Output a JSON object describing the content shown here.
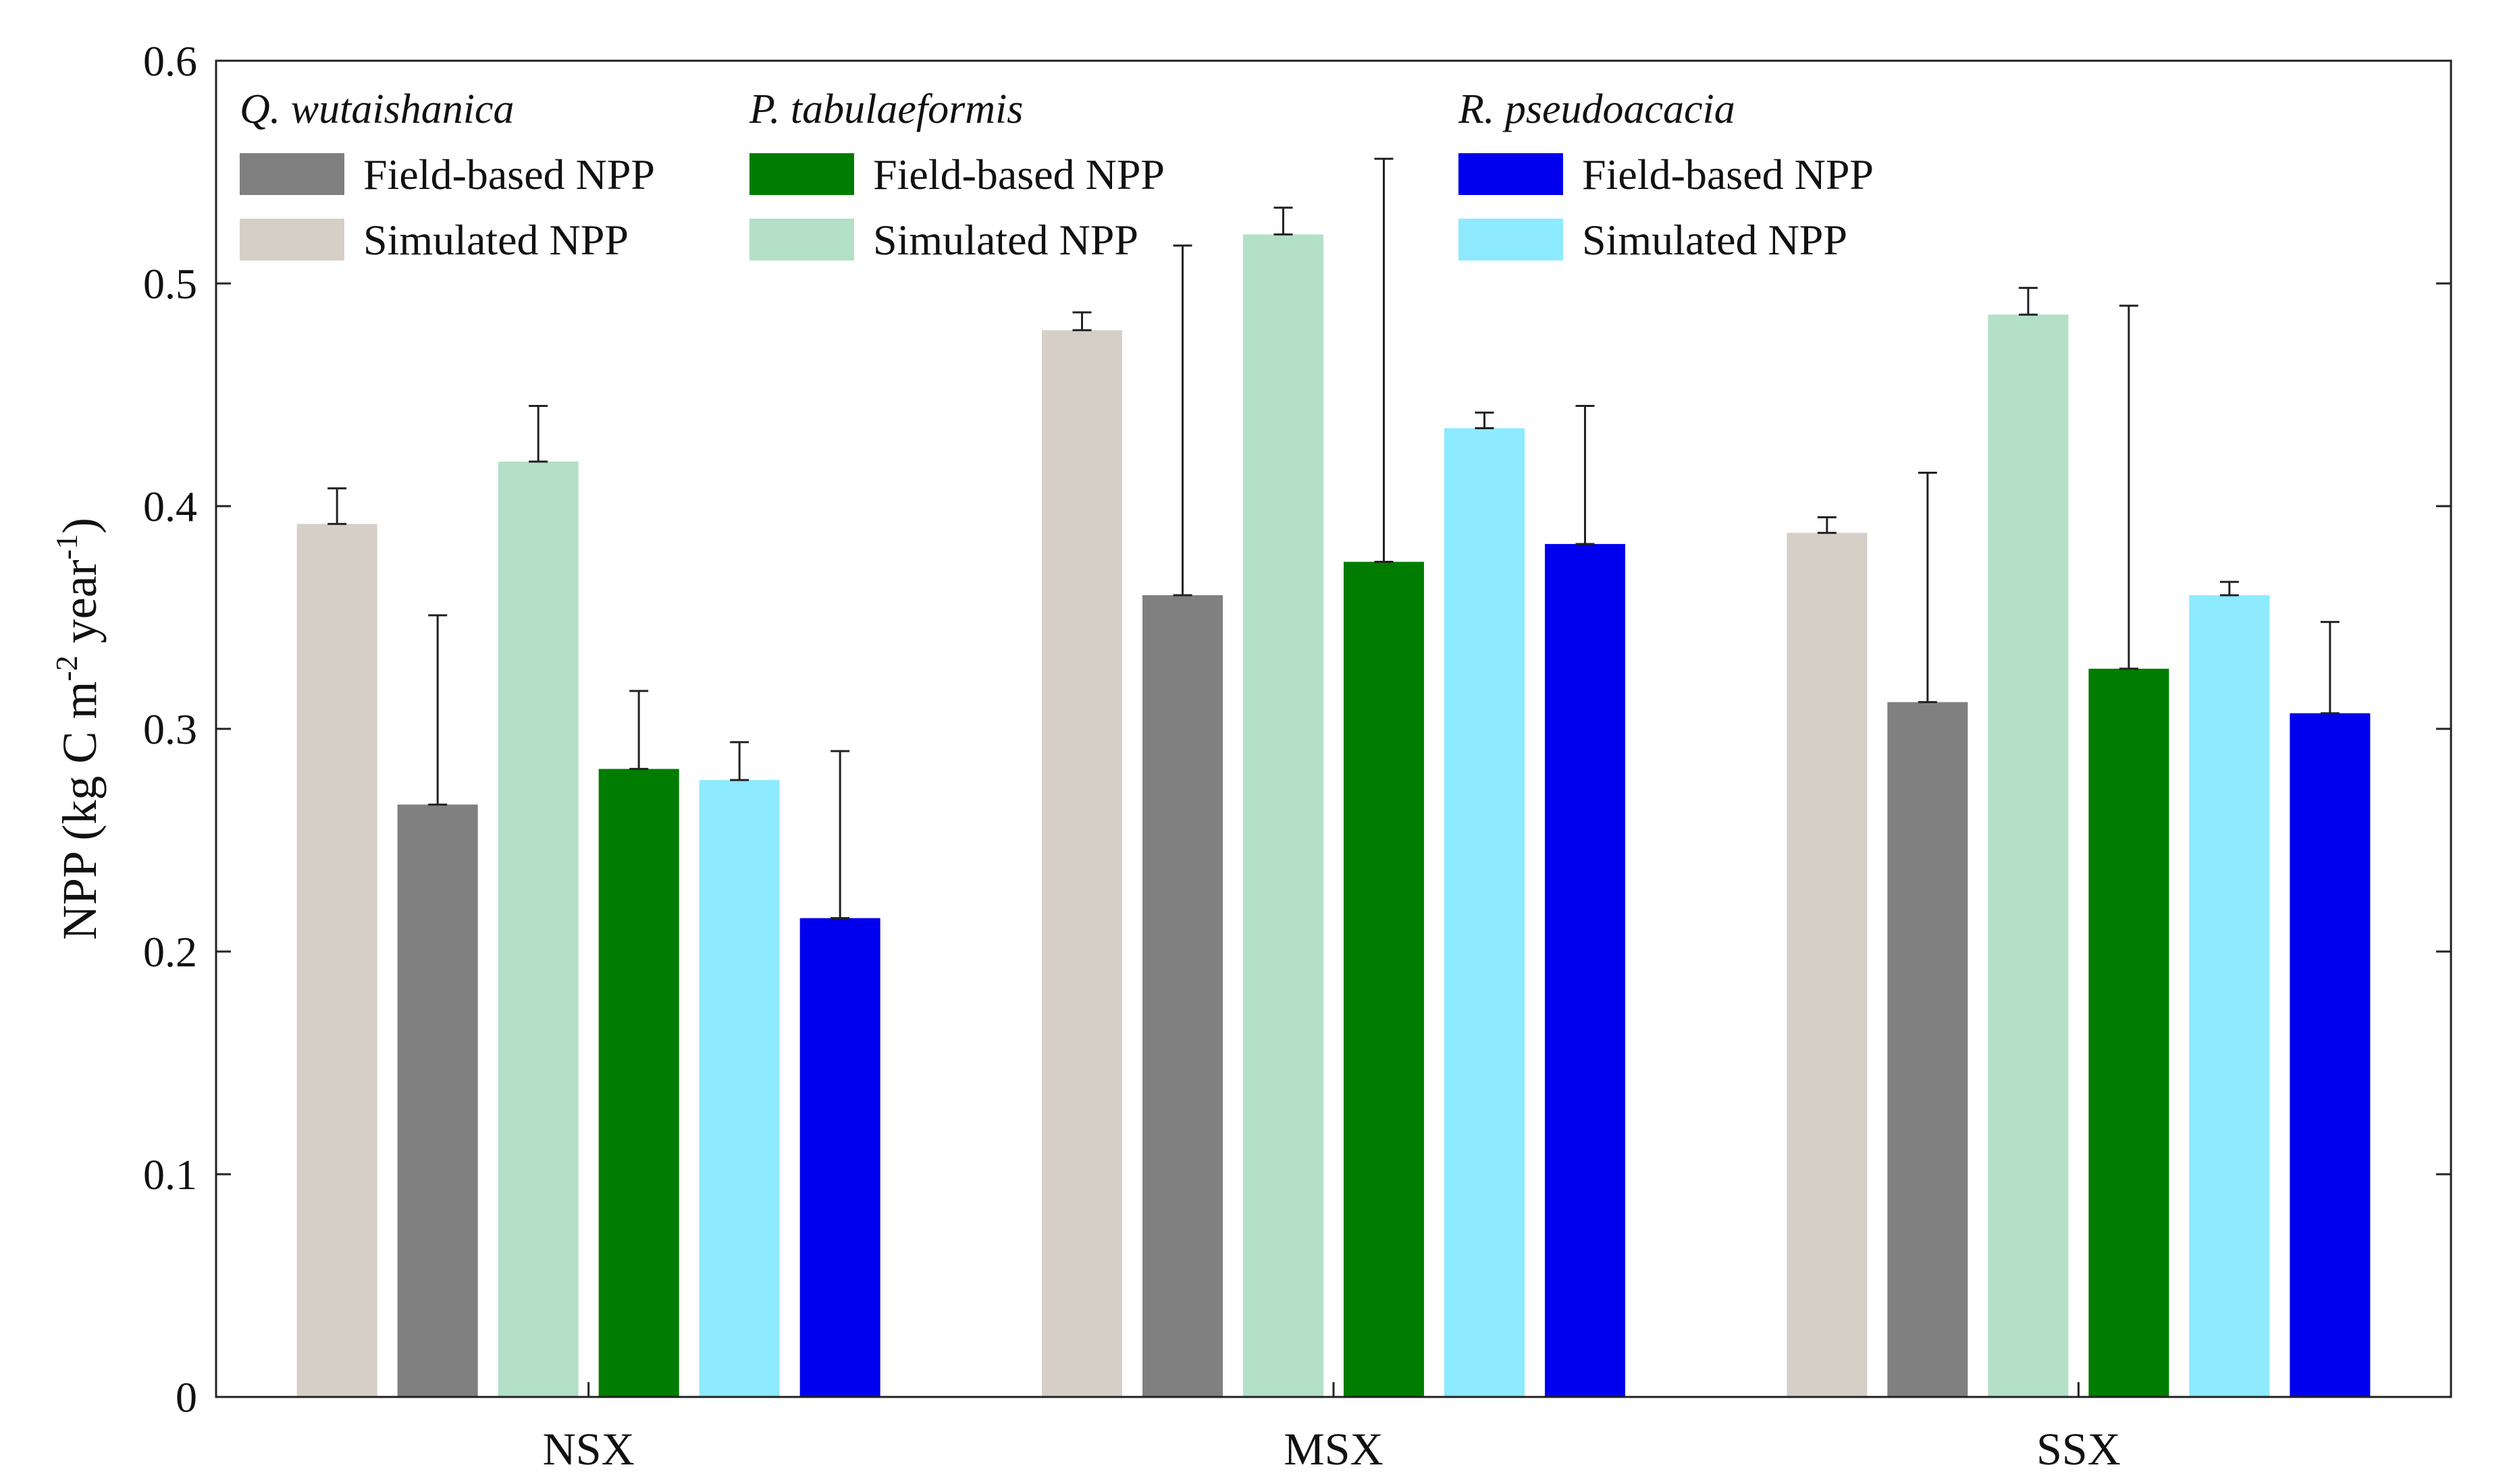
{
  "chart_data": {
    "type": "bar",
    "title": "",
    "xlabel": "",
    "ylabel": {
      "base": "NPP (kg C m",
      "exp1": "-2",
      "middle": " year",
      "exp2": "-1",
      "end": ")"
    },
    "ylim": [
      0,
      0.6
    ],
    "yticks": [
      "0",
      "0.1",
      "0.2",
      "0.3",
      "0.4",
      "0.5",
      "0.6"
    ],
    "grid": false,
    "categories": [
      "NSX",
      "MSX",
      "SSX"
    ],
    "series": [
      {
        "name": "Q. wutaishanica Simulated NPP",
        "color": "#d6cfc8",
        "values": [
          0.392,
          0.479,
          0.388
        ],
        "errors": [
          0.016,
          0.008,
          0.007
        ]
      },
      {
        "name": "Q. wutaishanica Field-based NPP",
        "color": "#808080",
        "values": [
          0.266,
          0.36,
          0.312
        ],
        "errors": [
          0.085,
          0.157,
          0.103
        ]
      },
      {
        "name": "P. tabulaeformis Simulated NPP",
        "color": "#b3e0c6",
        "values": [
          0.42,
          0.522,
          0.486
        ],
        "errors": [
          0.025,
          0.012,
          0.012
        ]
      },
      {
        "name": "P. tabulaeformis Field-based NPP",
        "color": "#007d00",
        "values": [
          0.282,
          0.375,
          0.327
        ],
        "errors": [
          0.035,
          0.181,
          0.163
        ]
      },
      {
        "name": "R. pseudoacacia Simulated NPP",
        "color": "#8deaff",
        "values": [
          0.277,
          0.435,
          0.36
        ],
        "errors": [
          0.017,
          0.007,
          0.006
        ]
      },
      {
        "name": "R. pseudoacacia Field-based NPP",
        "color": "#0000ee",
        "values": [
          0.215,
          0.383,
          0.307
        ],
        "errors": [
          0.075,
          0.062,
          0.041
        ]
      }
    ],
    "legend": {
      "placement": "top",
      "groups": [
        {
          "title": "Q. wutaishanica",
          "entries": [
            {
              "label": "Field-based NPP",
              "color": "#808080"
            },
            {
              "label": "Simulated NPP",
              "color": "#d6cfc8"
            }
          ]
        },
        {
          "title": "P. tabulaeformis",
          "entries": [
            {
              "label": "Field-based NPP",
              "color": "#007d00"
            },
            {
              "label": "Simulated NPP",
              "color": "#b3e0c6"
            }
          ]
        },
        {
          "title": "R. pseudoacacia",
          "entries": [
            {
              "label": "Field-based NPP",
              "color": "#0000ee"
            },
            {
              "label": "Simulated NPP",
              "color": "#8deaff"
            }
          ]
        }
      ]
    }
  }
}
